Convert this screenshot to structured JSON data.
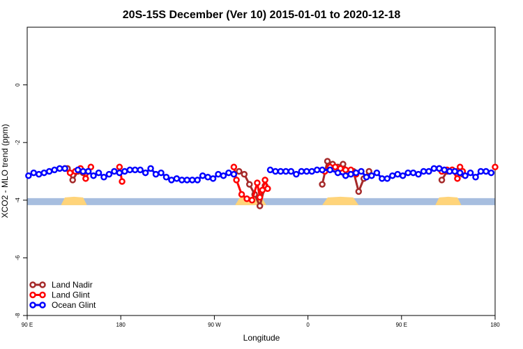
{
  "chart_data": {
    "type": "line",
    "title": "20S-15S December (Ver 10)   2015-01-01 to 2020-12-18",
    "xlabel": "Longitude",
    "ylabel": "XCO2 - MLO trend (ppm)",
    "xlim": [
      0,
      360
    ],
    "ylim": [
      -8,
      2
    ],
    "x_ticks": [
      {
        "value": 0,
        "label": "90 E"
      },
      {
        "value": 72,
        "label": "180"
      },
      {
        "value": 144,
        "label": "90 W"
      },
      {
        "value": 216,
        "label": "0"
      },
      {
        "value": 288,
        "label": "90 E"
      },
      {
        "value": 360,
        "label": "180"
      }
    ],
    "y_ticks": [
      {
        "value": 0,
        "label": "0"
      },
      {
        "value": -2,
        "label": "-2"
      },
      {
        "value": -4,
        "label": "-4"
      },
      {
        "value": -6,
        "label": "-6"
      },
      {
        "value": -8,
        "label": "-8"
      }
    ],
    "grid": false,
    "legend_position": "bottom-left",
    "series": [
      {
        "name": "Land Nadir",
        "color": "#a52a2a",
        "x": [
          31,
          35,
          39,
          43,
          47,
          163,
          167,
          171,
          175,
          179,
          183,
          227,
          231,
          235,
          239,
          243,
          247,
          251,
          255,
          259,
          263,
          319,
          323,
          327,
          331,
          335
        ],
        "y": [
          -2.9,
          -3.3,
          -3.0,
          -3.05,
          -3.0,
          -3.0,
          -3.1,
          -3.45,
          -3.8,
          -4.2,
          -3.5,
          -3.45,
          -2.65,
          -2.75,
          -2.85,
          -2.75,
          -3.0,
          -3.0,
          -3.7,
          -3.25,
          -3.0,
          -3.3,
          -3.0,
          -2.95,
          -3.0,
          -3.1
        ]
      },
      {
        "name": "Land Glint",
        "color": "#ff0000",
        "x": [
          29,
          33,
          37,
          41,
          45,
          49,
          71,
          73,
          159,
          161,
          165,
          169,
          173,
          177,
          179,
          181,
          183,
          185,
          229,
          233,
          237,
          241,
          245,
          249,
          253,
          317,
          319,
          323,
          327,
          331,
          333,
          335,
          360
        ],
        "y": [
          -2.9,
          -3.05,
          -3.0,
          -2.9,
          -3.25,
          -2.85,
          -2.85,
          -3.35,
          -2.85,
          -3.3,
          -3.8,
          -3.95,
          -4.0,
          -3.4,
          -3.9,
          -3.65,
          -3.3,
          -3.6,
          -3.0,
          -2.85,
          -2.85,
          -2.9,
          -2.95,
          -2.95,
          -3.1,
          -2.9,
          -3.0,
          -2.95,
          -2.95,
          -3.25,
          -2.85,
          -3.0,
          -2.85
        ]
      },
      {
        "name": "Ocean Glint",
        "color": "#0000ff",
        "x": [
          1,
          5,
          9,
          13,
          17,
          21,
          25,
          29,
          39,
          43,
          47,
          51,
          55,
          59,
          63,
          67,
          71,
          75,
          79,
          83,
          87,
          91,
          95,
          99,
          103,
          107,
          111,
          115,
          119,
          123,
          127,
          131,
          135,
          139,
          143,
          147,
          151,
          155,
          159,
          187,
          191,
          195,
          199,
          203,
          207,
          211,
          215,
          219,
          223,
          227,
          233,
          239,
          245,
          249,
          253,
          257,
          261,
          265,
          269,
          273,
          277,
          281,
          285,
          289,
          293,
          297,
          301,
          305,
          309,
          313,
          317,
          321,
          325,
          329,
          333,
          337,
          341,
          345,
          349,
          353,
          357
        ],
        "y": [
          -3.15,
          -3.05,
          -3.1,
          -3.05,
          -3.0,
          -2.95,
          -2.9,
          -2.9,
          -2.95,
          -3.0,
          -3.0,
          -3.15,
          -3.05,
          -3.2,
          -3.1,
          -3.0,
          -3.05,
          -3.0,
          -2.95,
          -2.95,
          -2.95,
          -3.05,
          -2.9,
          -3.1,
          -3.05,
          -3.2,
          -3.3,
          -3.25,
          -3.3,
          -3.3,
          -3.3,
          -3.3,
          -3.15,
          -3.2,
          -3.25,
          -3.1,
          -3.15,
          -3.05,
          -3.1,
          -2.95,
          -3.0,
          -3.0,
          -3.0,
          -3.0,
          -3.1,
          -3.0,
          -3.0,
          -3.0,
          -2.95,
          -2.95,
          -2.95,
          -3.05,
          -3.15,
          -3.1,
          -3.05,
          -3.0,
          -3.2,
          -3.15,
          -3.05,
          -3.25,
          -3.25,
          -3.15,
          -3.1,
          -3.15,
          -3.05,
          -3.05,
          -3.1,
          -3.0,
          -3.0,
          -2.9,
          -2.9,
          -2.95,
          -3.0,
          -3.0,
          -3.05,
          -3.15,
          -3.05,
          -3.2,
          -3.0,
          -3.0,
          -3.05
        ]
      }
    ],
    "land_ocean_mask": {
      "y": -4.05,
      "ocean_color": "#a7bedf",
      "land_color": "#ffd47a",
      "land_ranges": [
        [
          26,
          46
        ],
        [
          160,
          184
        ],
        [
          227,
          255
        ],
        [
          314,
          334
        ]
      ]
    }
  }
}
